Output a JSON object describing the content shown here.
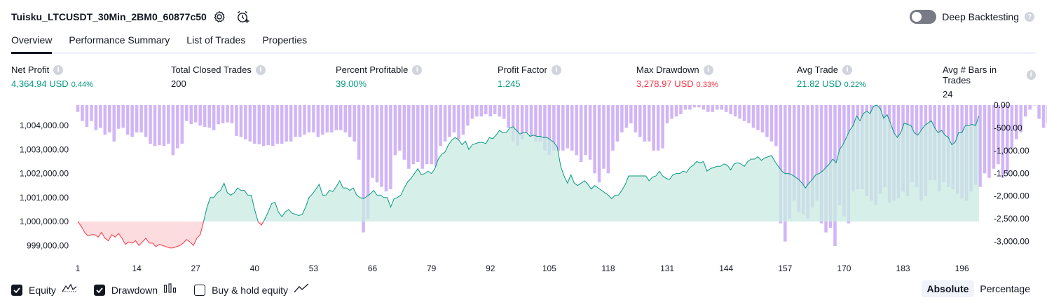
{
  "strategy": {
    "title": "Tuisku_LTCUSDT_30Min_2BM0_60877c50"
  },
  "header": {
    "deep_backtesting_label": "Deep Backtesting",
    "help_glyph": "?"
  },
  "tabs": [
    {
      "label": "Overview",
      "active": true
    },
    {
      "label": "Performance Summary",
      "active": false
    },
    {
      "label": "List of Trades",
      "active": false
    },
    {
      "label": "Properties",
      "active": false
    }
  ],
  "metrics": [
    {
      "label": "Net Profit",
      "value": "4,364.94 USD",
      "pct": "0.44%",
      "color": "#089981"
    },
    {
      "label": "Total Closed Trades",
      "value": "200",
      "pct": "",
      "color": "#131722"
    },
    {
      "label": "Percent Profitable",
      "value": "39.00%",
      "pct": "",
      "color": "#089981"
    },
    {
      "label": "Profit Factor",
      "value": "1.245",
      "pct": "",
      "color": "#089981"
    },
    {
      "label": "Max Drawdown",
      "value": "3,278.97 USD",
      "pct": "0.33%",
      "color": "#f23645"
    },
    {
      "label": "Avg Trade",
      "value": "21.82 USD",
      "pct": "0.22%",
      "color": "#089981"
    },
    {
      "label": "Avg # Bars in Trades",
      "value": "24",
      "pct": "",
      "color": "#131722"
    }
  ],
  "info_glyph": "i",
  "chart_data": {
    "type": "area",
    "x_ticks": [
      "1",
      "14",
      "27",
      "40",
      "53",
      "66",
      "79",
      "92",
      "105",
      "118",
      "131",
      "144",
      "157",
      "170",
      "183",
      "196"
    ],
    "x_range": [
      1,
      201
    ],
    "left_axis": {
      "ticks": [
        "1,004,000.00",
        "1,003,000.00",
        "1,002,000.00",
        "1,001,000.00",
        "1,000,000.00",
        "999,000.00"
      ],
      "range": [
        998600,
        1004850
      ],
      "baseline": 1000000
    },
    "right_axis": {
      "ticks": [
        "0.00",
        "-500.00",
        "-1,000.00",
        "-1,500.00",
        "-2,000.00",
        "-2,500.00",
        "-3,000.00"
      ],
      "range": [
        -3300,
        0
      ]
    },
    "colors": {
      "equity_up": "#089981",
      "equity_down": "#f23645",
      "equity_fill_up": "#c8ebe1",
      "equity_fill_down": "#fbd0d3",
      "drawdown": "#c9a8f5"
    },
    "series": [
      {
        "name": "Equity",
        "values": [
          1000000,
          999800,
          999550,
          999400,
          999450,
          999450,
          999350,
          999550,
          999300,
          999200,
          999450,
          999350,
          999500,
          999300,
          999050,
          999150,
          999100,
          999200,
          999000,
          999150,
          999300,
          999100,
          999100,
          998950,
          999050,
          999000,
          998950,
          998900,
          998900,
          998950,
          999000,
          999100,
          999250,
          999150,
          999000,
          999300,
          999450,
          1000000,
          1000600,
          1001000,
          1001000,
          1001200,
          1001300,
          1001600,
          1001200,
          1001100,
          1001200,
          1001400,
          1001300,
          1001300,
          1001100,
          1001100,
          1000500,
          1000000,
          999850,
          1000100,
          1000400,
          1000750,
          1000800,
          1000400,
          1000200,
          1000400,
          1000500,
          1000350,
          1000300,
          1000250,
          1000300,
          1000600,
          1001000,
          1001150,
          1001350,
          1001550,
          1001100,
          1001100,
          1001300,
          1001250,
          1001450,
          1001700,
          1001400,
          1001400,
          1001300,
          1001400,
          1001100,
          1001000,
          1000950,
          1001050,
          1001150,
          1001300,
          1001100,
          1001100,
          1001000,
          1001000,
          1000600,
          1000950,
          1001000,
          1001100,
          1001400,
          1001650,
          1001800,
          1002000,
          1002200,
          1001950,
          1002000,
          1002100,
          1002000,
          1002200,
          1002600,
          1002800,
          1002900,
          1003200,
          1003400,
          1003500,
          1003400,
          1003200,
          1003350,
          1003000,
          1003200,
          1003250,
          1003300,
          1003300,
          1003250,
          1003500,
          1003450,
          1003600,
          1003800,
          1003700,
          1003700,
          1003900,
          1003950,
          1003800,
          1003650,
          1003700,
          1003700,
          1003550,
          1003600,
          1003550,
          1003550,
          1003500,
          1003500,
          1003400,
          1003300,
          1003100,
          1002300,
          1001900,
          1001600,
          1001950,
          1001600,
          1001500,
          1001600,
          1001700,
          1001550,
          1001350,
          1001500,
          1001400,
          1001300,
          1001200,
          1001100,
          1000950,
          1001100,
          1001100,
          1001300,
          1001550,
          1001900,
          1001900,
          1001900,
          1001900,
          1001900,
          1001900,
          1001700,
          1001850,
          1001900,
          1002100,
          1001900,
          1001800,
          1001750,
          1001950,
          1002000,
          1002000,
          1002100,
          1002050,
          1002250,
          1002350,
          1002500,
          1002450,
          1002500,
          1002100,
          1002200,
          1002250,
          1002300,
          1002300,
          1002400,
          1002350,
          1002150,
          1002400,
          1002450,
          1002400,
          1002300,
          1002500,
          1002600,
          1002600,
          1002700,
          1002550,
          1002650,
          1002700,
          1002750,
          1002500,
          1002300,
          1002100,
          1002000,
          1002000,
          1001950,
          1001850,
          1001750,
          1001600,
          1001400,
          1001600,
          1001750,
          1001950,
          1002000,
          1002100,
          1002250,
          1002400,
          1002600,
          1002450,
          1003000,
          1003200,
          1003500,
          1003800,
          1004000,
          1004400,
          1004200,
          1004500,
          1004600,
          1004500,
          1004800,
          1004850,
          1004700,
          1004300,
          1004450,
          1004100,
          1003700,
          1003500,
          1003700,
          1004100,
          1004050,
          1004000,
          1003700,
          1003600,
          1003800,
          1004000,
          1004100,
          1004200,
          1003900,
          1003700,
          1003800,
          1003600,
          1003500,
          1003200,
          1003300,
          1003700,
          1003700,
          1004000,
          1004000,
          1004050,
          1004000,
          1004400
        ],
        "x_step": 0.75
      },
      {
        "name": "Drawdown",
        "values": [
          -150,
          -350,
          -480,
          -350,
          -550,
          -500,
          -650,
          -600,
          -800,
          -520,
          -500,
          -650,
          -700,
          -600,
          -600,
          -700,
          -850,
          -900,
          -880,
          -900,
          -850,
          -1100,
          -950,
          -850,
          -350,
          -420,
          -380,
          -450,
          -480,
          -500,
          -550,
          -420,
          -400,
          -380,
          -400,
          -680,
          -700,
          -750,
          -800,
          -850,
          -860,
          -900,
          -880,
          -900,
          -850,
          -850,
          -800,
          -800,
          -700,
          -700,
          -650,
          -600,
          -600,
          -700,
          -650,
          -600,
          -600,
          -550,
          -550,
          -600,
          -700,
          -800,
          -1200,
          -2800,
          -2500,
          -1600,
          -1700,
          -1800,
          -1900,
          -1850,
          -1100,
          -1000,
          -1200,
          -1400,
          -1300,
          -1250,
          -1400,
          -1300,
          -1300,
          -1350,
          -900,
          -800,
          -700,
          -600,
          -750,
          -650,
          -450,
          -300,
          -250,
          -250,
          -200,
          -250,
          -200,
          -250,
          -300,
          -500,
          -800,
          -900,
          -750,
          -600,
          -700,
          -800,
          -800,
          -1000,
          -1100,
          -1000,
          -1000,
          -1000,
          -950,
          -1000,
          -1100,
          -1250,
          -1100,
          -1200,
          -1500,
          -1700,
          -1400,
          -1500,
          -1000,
          -800,
          -600,
          -500,
          -400,
          -600,
          -700,
          -800,
          -800,
          -1000,
          -1000,
          -950,
          -400,
          -300,
          -250,
          -200,
          -100,
          -100,
          -50,
          -50,
          -100,
          -150,
          -150,
          -100,
          -100,
          -150,
          -200,
          -250,
          -300,
          -350,
          -400,
          -500,
          -550,
          -600,
          -700,
          -800,
          -900,
          -2600,
          -3000,
          -2500,
          -2100,
          -2350,
          -2400,
          -2500,
          -2250,
          -2100,
          -2600,
          -2800,
          -2700,
          -3100,
          -2200,
          -2450,
          -2600,
          -1900,
          -1850,
          -1850,
          -2000,
          -2100,
          -2200,
          -1950,
          -1800,
          -2150,
          -2100,
          -2050,
          -1900,
          -2000,
          -1700,
          -1800,
          -2100,
          -2000,
          -1650,
          -1650,
          -1900,
          -1700,
          -1800,
          -1850,
          -1950,
          -2050,
          -2100,
          -1900,
          -1750,
          -1800,
          -1500,
          -1600,
          -1400,
          -1300,
          -1600,
          -1500,
          -950,
          -750,
          -600,
          -250,
          -100,
          0,
          -300,
          -500,
          -400,
          -1900,
          -700,
          -850,
          -900,
          -800,
          -650,
          -750,
          -900,
          -1000,
          -600,
          -1400,
          -1000,
          -600,
          -1100,
          -900,
          -1400,
          -1250,
          -800,
          -1600,
          -600,
          -1000
        ],
        "x_step": 1
      }
    ]
  },
  "legend": [
    {
      "label": "Equity",
      "checked": true,
      "icon": "equity-line-icon"
    },
    {
      "label": "Drawdown",
      "checked": true,
      "icon": "drawdown-bars-icon"
    },
    {
      "label": "Buy & hold equity",
      "checked": false,
      "icon": "buy-hold-line-icon"
    }
  ],
  "modes": [
    {
      "label": "Absolute",
      "active": true
    },
    {
      "label": "Percentage",
      "active": false
    }
  ]
}
